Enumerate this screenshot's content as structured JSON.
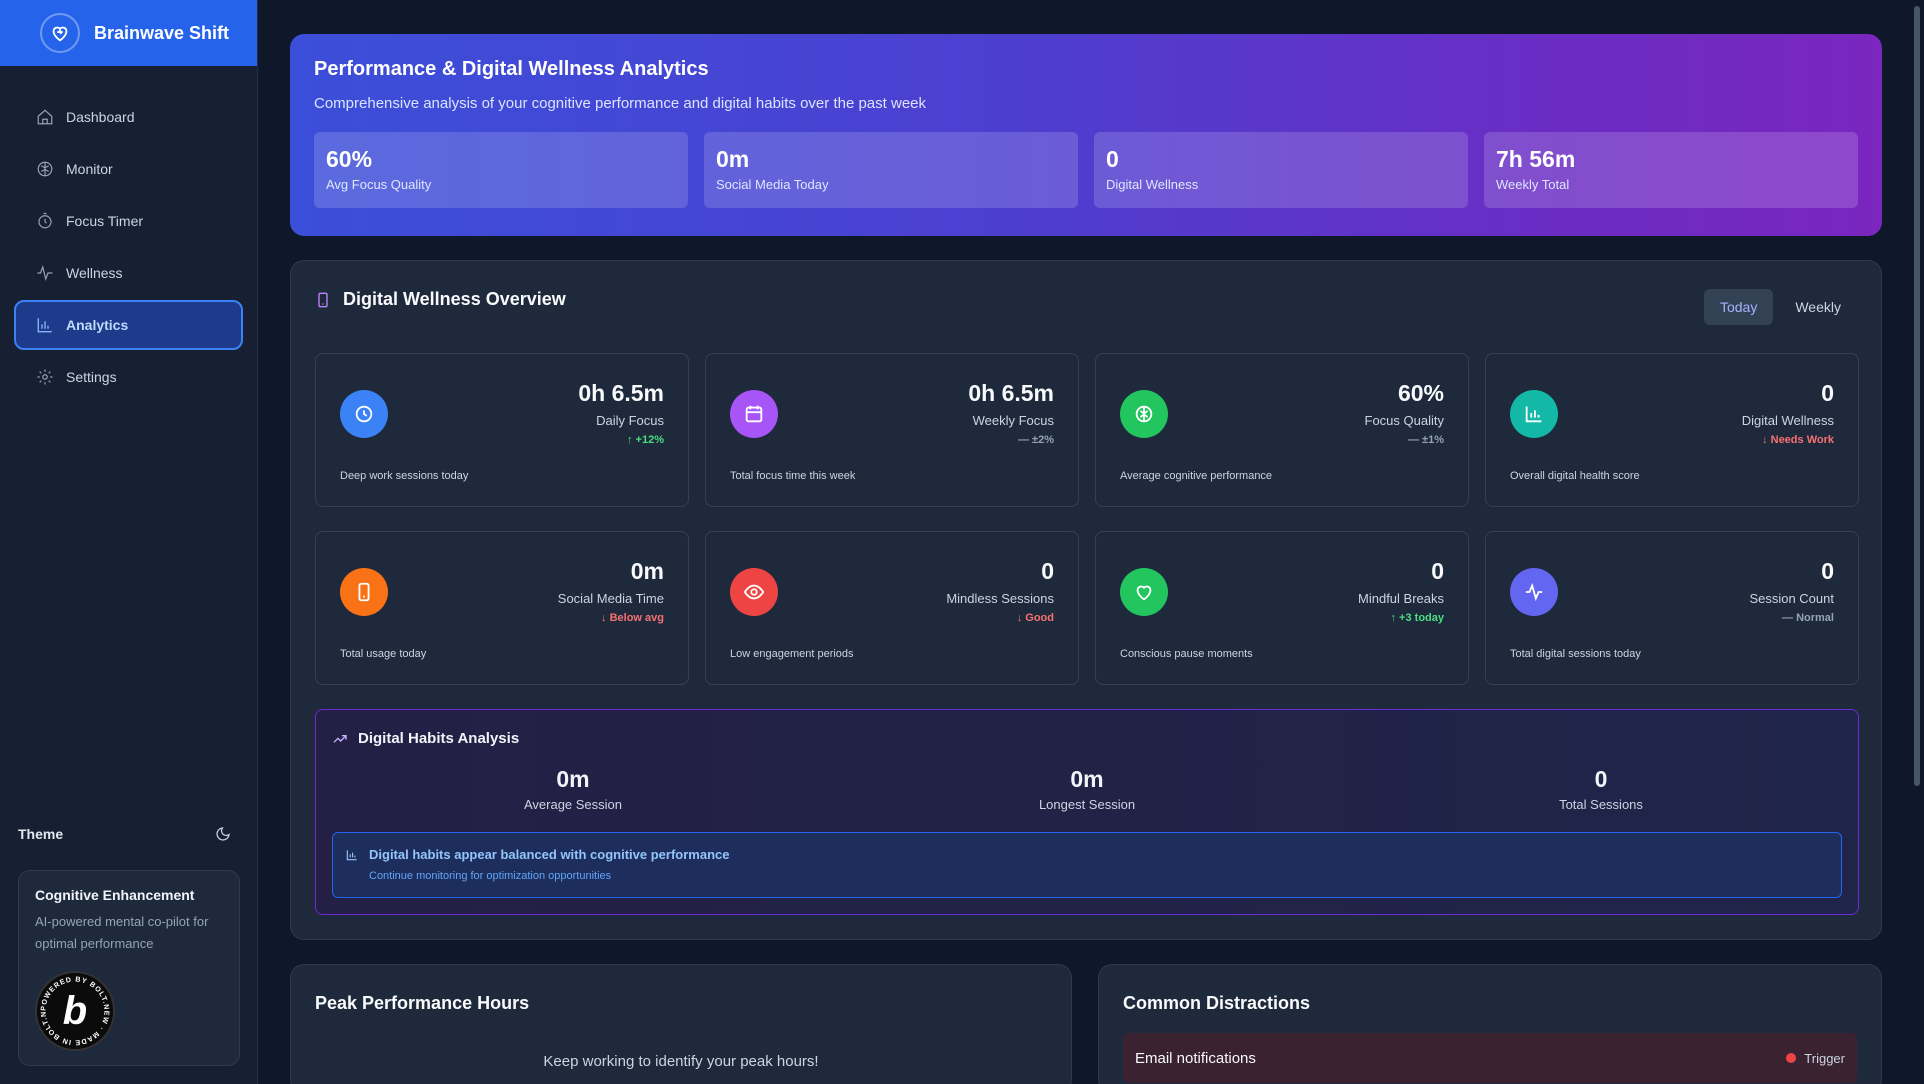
{
  "app": {
    "name": "Brainwave Shift"
  },
  "sidebar": {
    "items": [
      {
        "label": "Dashboard",
        "icon": "home-icon"
      },
      {
        "label": "Monitor",
        "icon": "brain-icon"
      },
      {
        "label": "Focus Timer",
        "icon": "timer-icon"
      },
      {
        "label": "Wellness",
        "icon": "activity-icon"
      },
      {
        "label": "Analytics",
        "icon": "bar-chart-icon",
        "active": true
      },
      {
        "label": "Settings",
        "icon": "gear-icon"
      }
    ],
    "theme_label": "Theme",
    "promo": {
      "title": "Cognitive Enhancement",
      "desc": "AI-powered mental co-pilot for optimal performance",
      "badge_text": "POWERED BY BOLT.NEW · MADE IN BOLT.NEW"
    }
  },
  "hero": {
    "title": "Performance & Digital Wellness Analytics",
    "subtitle": "Comprehensive analysis of your cognitive performance and digital habits over the past week",
    "stats": [
      {
        "value": "60%",
        "label": "Avg Focus Quality"
      },
      {
        "value": "0m",
        "label": "Social Media Today"
      },
      {
        "value": "0",
        "label": "Digital Wellness"
      },
      {
        "value": "7h 56m",
        "label": "Weekly Total"
      }
    ]
  },
  "overview": {
    "title": "Digital Wellness Overview",
    "toggle": {
      "today": "Today",
      "weekly": "Weekly"
    },
    "cards": [
      {
        "value": "0h 6.5m",
        "label": "Daily Focus",
        "trend": "↑ +12%",
        "trend_type": "up",
        "desc": "Deep work sessions today",
        "color": "#3b82f6",
        "icon": "clock-icon"
      },
      {
        "value": "0h 6.5m",
        "label": "Weekly Focus",
        "trend": "— ±2%",
        "trend_type": "flat",
        "desc": "Total focus time this week",
        "color": "#a855f7",
        "icon": "calendar-icon"
      },
      {
        "value": "60%",
        "label": "Focus Quality",
        "trend": "— ±1%",
        "trend_type": "flat",
        "desc": "Average cognitive performance",
        "color": "#22c55e",
        "icon": "brain-icon"
      },
      {
        "value": "0",
        "label": "Digital Wellness",
        "trend": "↓ Needs Work",
        "trend_type": "down",
        "desc": "Overall digital health score",
        "color": "#14b8a6",
        "icon": "bar-chart-icon"
      },
      {
        "value": "0m",
        "label": "Social Media Time",
        "trend": "↓ Below avg",
        "trend_type": "down",
        "desc": "Total usage today",
        "color": "#f97316",
        "icon": "phone-icon"
      },
      {
        "value": "0",
        "label": "Mindless Sessions",
        "trend": "↓ Good",
        "trend_type": "down",
        "desc": "Low engagement periods",
        "color": "#ef4444",
        "icon": "eye-icon"
      },
      {
        "value": "0",
        "label": "Mindful Breaks",
        "trend": "↑ +3 today",
        "trend_type": "up",
        "desc": "Conscious pause moments",
        "color": "#22c55e",
        "icon": "heart-icon"
      },
      {
        "value": "0",
        "label": "Session Count",
        "trend": "— Normal",
        "trend_type": "flat",
        "desc": "Total digital sessions today",
        "color": "#6366f1",
        "icon": "activity-icon"
      }
    ]
  },
  "habits": {
    "title": "Digital Habits Analysis",
    "stats": [
      {
        "value": "0m",
        "label": "Average Session"
      },
      {
        "value": "0m",
        "label": "Longest Session"
      },
      {
        "value": "0",
        "label": "Total Sessions"
      }
    ],
    "insight_title": "Digital habits appear balanced with cognitive performance",
    "insight_sub": "Continue monitoring for optimization opportunities"
  },
  "peak": {
    "title": "Peak Performance Hours",
    "message": "Keep working to identify your peak hours!"
  },
  "distractions": {
    "title": "Common Distractions",
    "items": [
      {
        "name": "Email notifications",
        "tag": "Trigger"
      }
    ]
  }
}
